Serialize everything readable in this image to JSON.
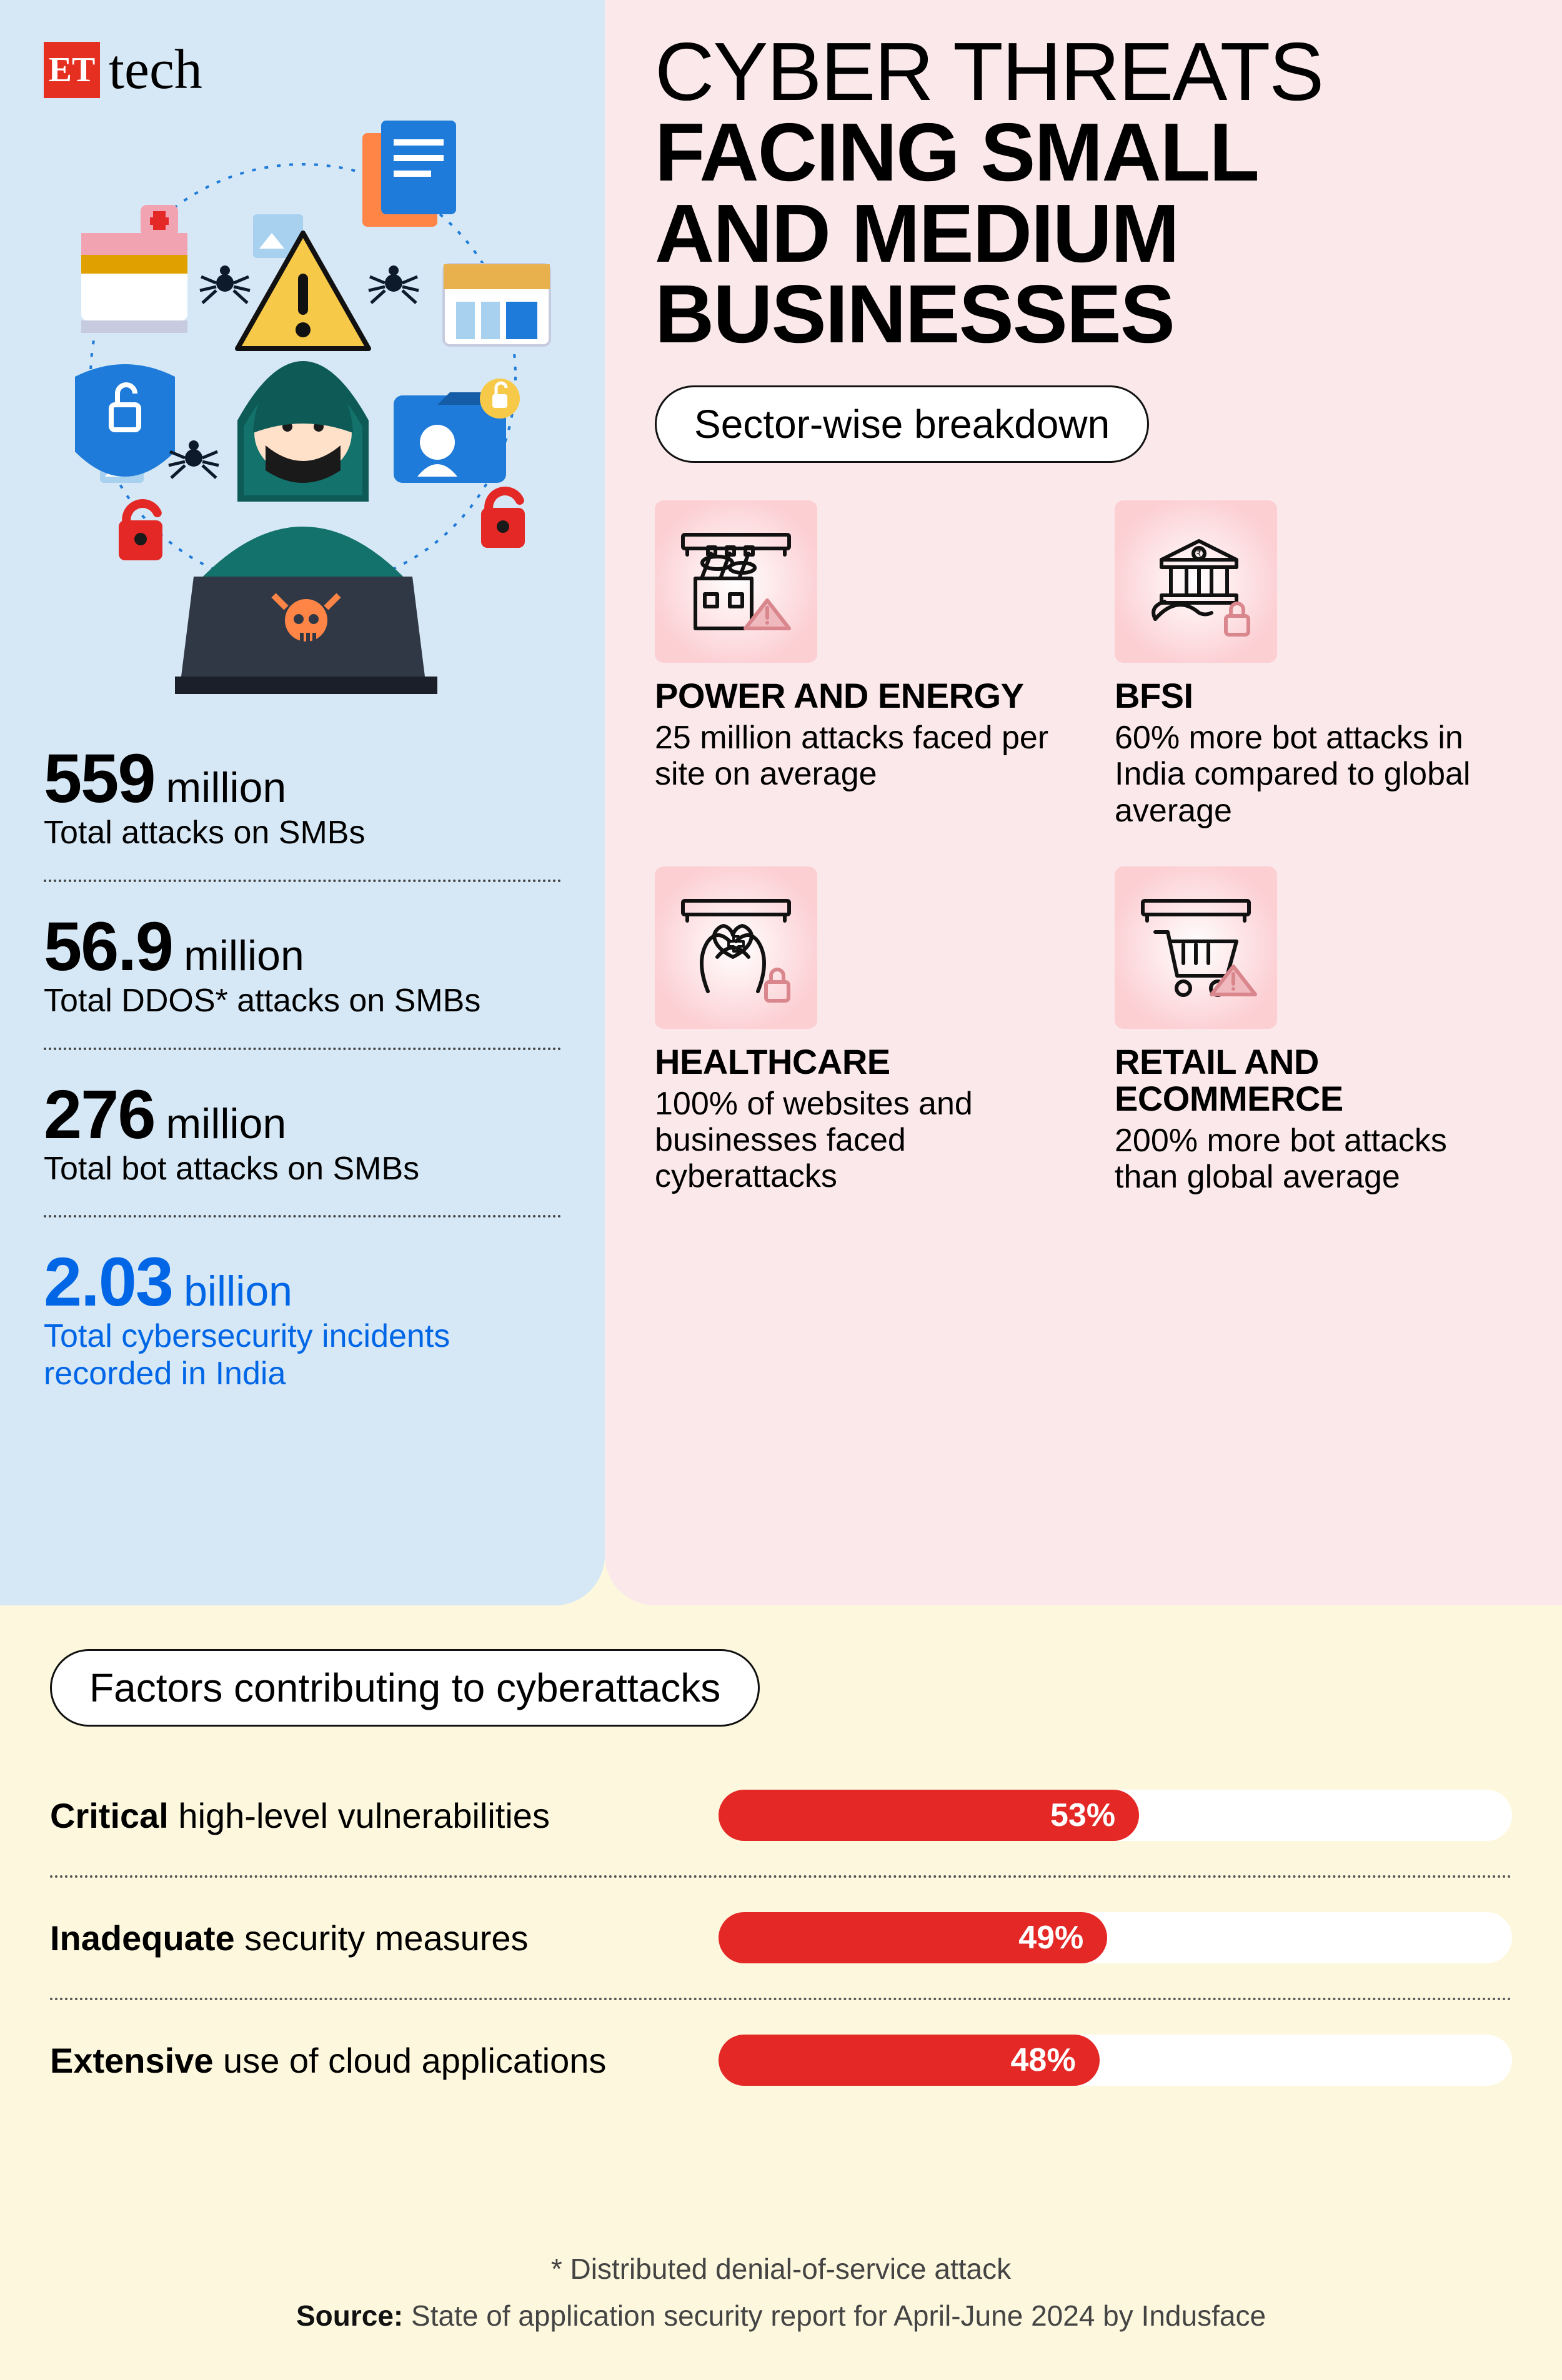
{
  "logo": {
    "box": "ET",
    "text": "tech"
  },
  "headline": {
    "line1": "CYBER THREATS",
    "line2": "FACING SMALL",
    "line3": "AND MEDIUM",
    "line4": "BUSINESSES"
  },
  "pills": {
    "sector": "Sector-wise breakdown",
    "factors": "Factors contributing to cyberattacks"
  },
  "colors": {
    "blue_panel": "#d6e8f6",
    "pink_panel": "#fbe8ea",
    "cream": "#fdf8dd",
    "bar_red": "#e42825",
    "highlight_blue": "#0066e6",
    "logo_red": "#e53021"
  },
  "stats": [
    {
      "value": "559",
      "unit": "million",
      "desc": "Total attacks on SMBs",
      "highlight": false
    },
    {
      "value": "56.9",
      "unit": "million",
      "desc": "Total DDOS* attacks on SMBs",
      "highlight": false
    },
    {
      "value": "276",
      "unit": "million",
      "desc": "Total bot attacks on SMBs",
      "highlight": false
    },
    {
      "value": "2.03",
      "unit": "billion",
      "desc": "Total cybersecurity incidents recorded in India",
      "highlight": true
    }
  ],
  "sectors": [
    {
      "icon": "power",
      "title": "POWER AND ENERGY",
      "desc": "25 million attacks faced per site on average"
    },
    {
      "icon": "bfsi",
      "title": "BFSI",
      "desc": "60% more bot attacks in India compared to global average"
    },
    {
      "icon": "health",
      "title": "HEALTHCARE",
      "desc": "100% of websites and businesses faced cyberattacks"
    },
    {
      "icon": "retail",
      "title": "RETAIL AND ECOMMERCE",
      "desc": "200% more bot attacks than global average"
    }
  ],
  "factors": {
    "bar_color": "#e42825",
    "track_color": "#ffffff",
    "items": [
      {
        "bold": "Critical",
        "rest": " high-level vulnerabilities",
        "pct": 53
      },
      {
        "bold": "Inadequate",
        "rest": " security measures",
        "pct": 49
      },
      {
        "bold": "Extensive",
        "rest": " use of cloud applications",
        "pct": 48
      }
    ]
  },
  "footnotes": {
    "l1": "* Distributed denial-of-service attack",
    "l2_bold": "Source:",
    "l2_rest": " State of application security report for April-June 2024 by Indusface"
  }
}
